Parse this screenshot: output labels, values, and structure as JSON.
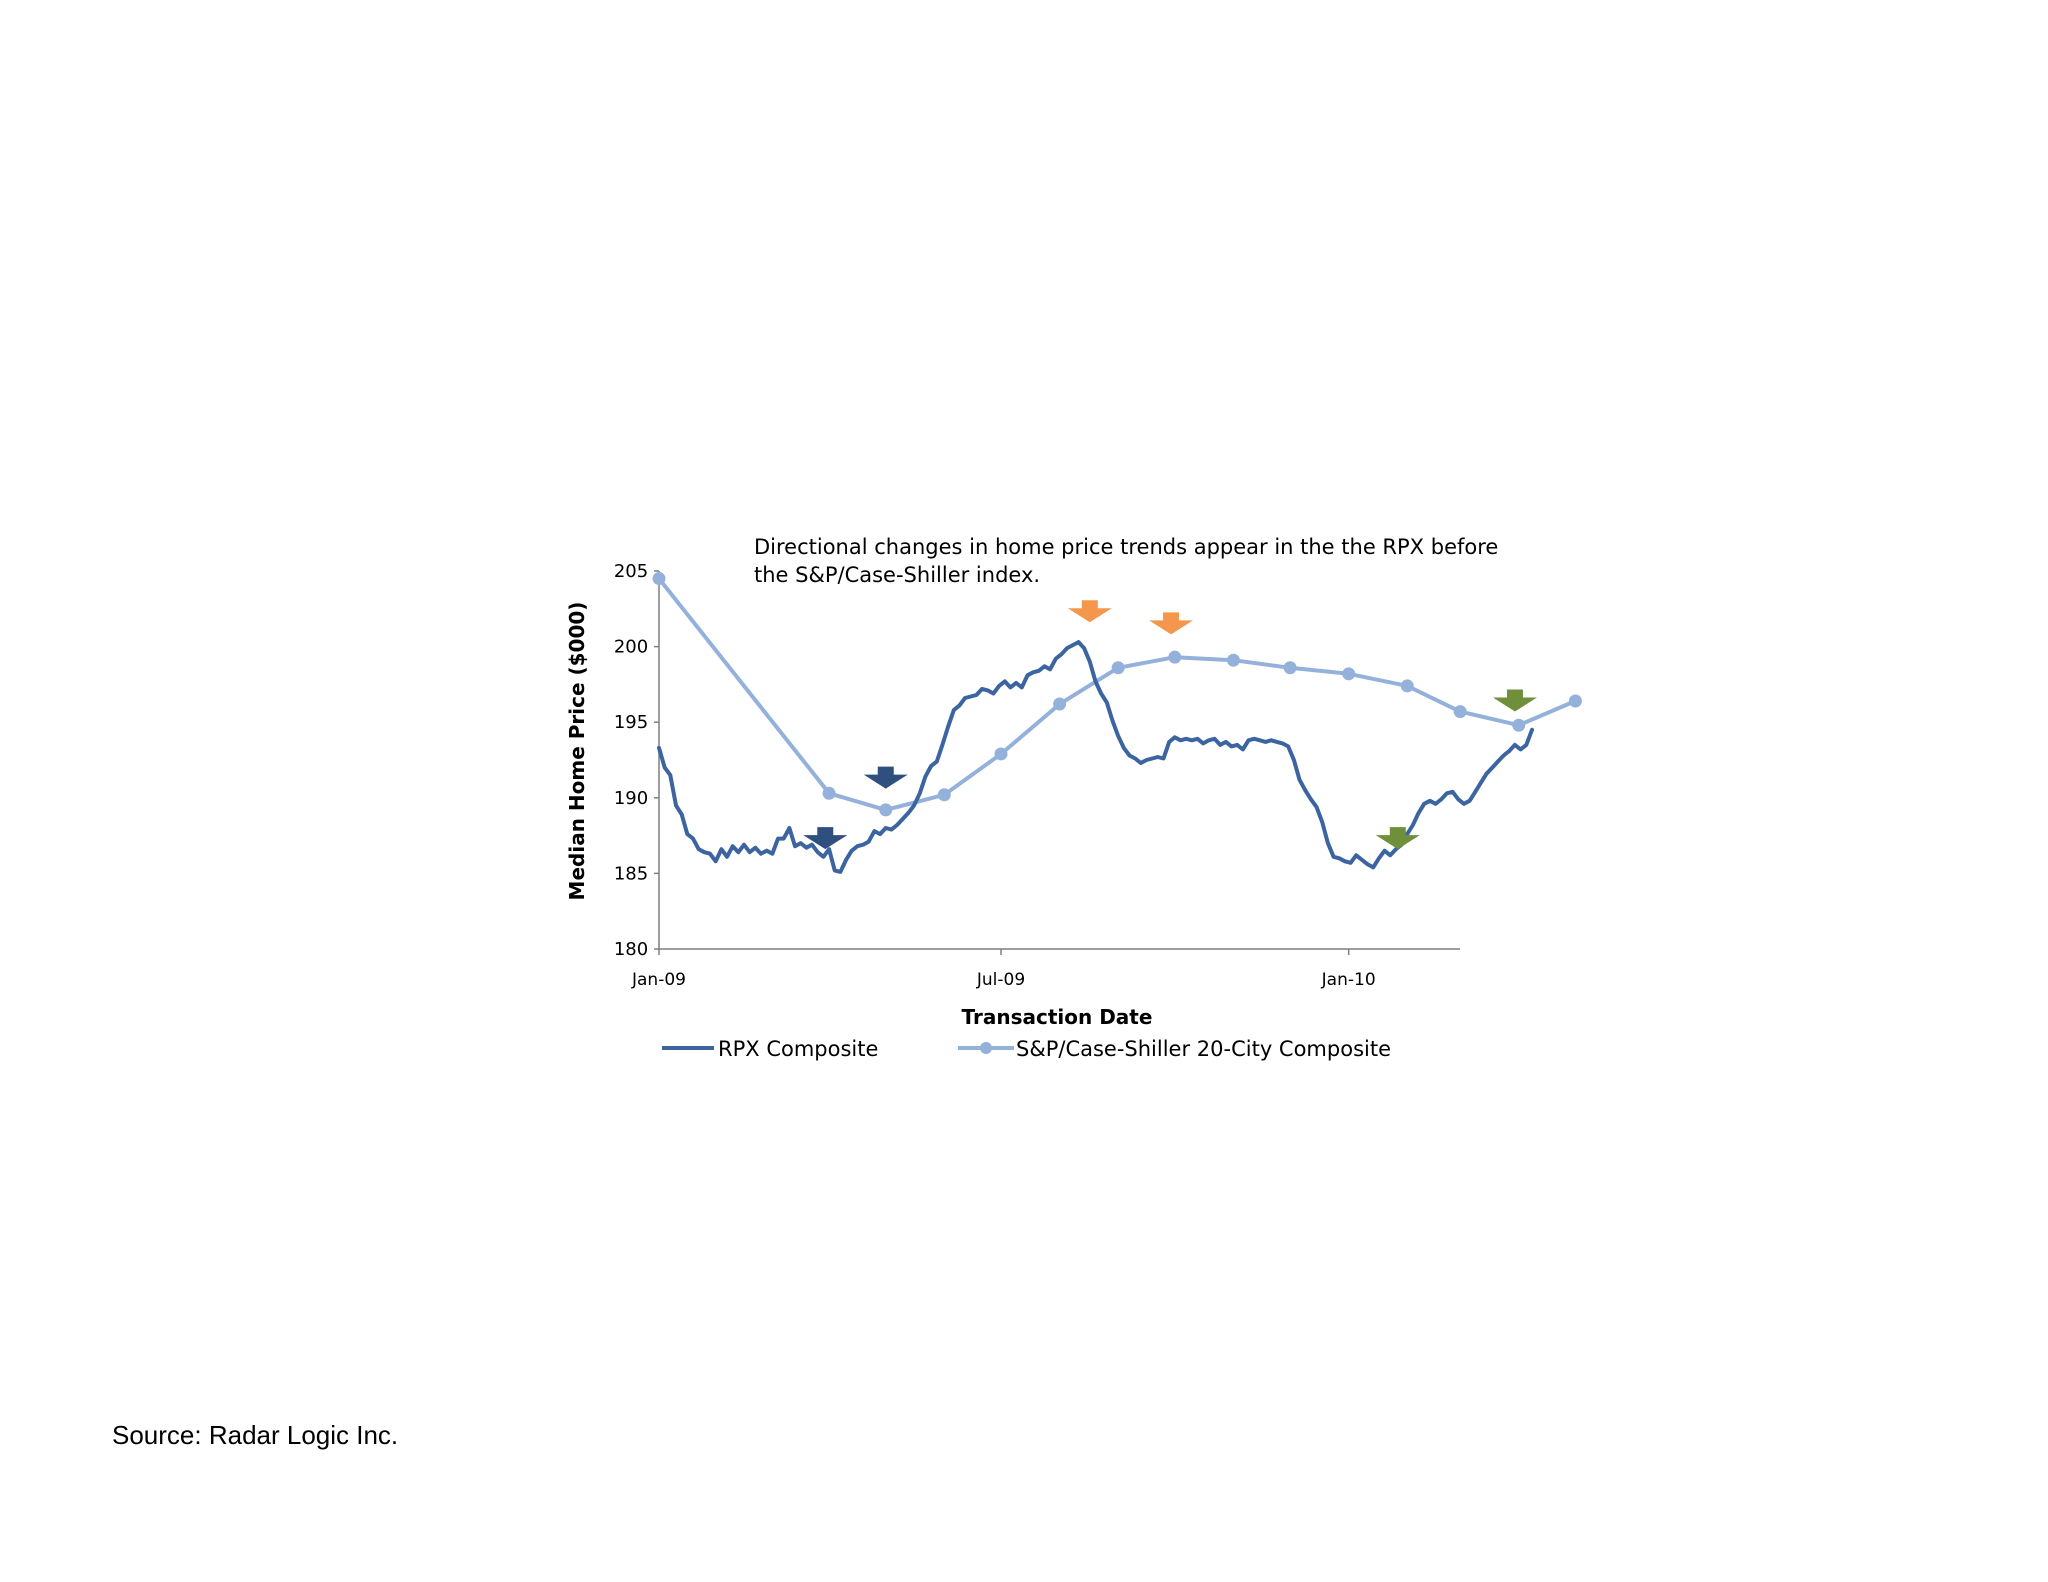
{
  "source": "Source: Radar Logic Inc.",
  "colors": {
    "rpx": "#3b64a0",
    "cs": "#94b1dc",
    "axis": "#7f7f7f",
    "dark_arrow": "#2f4f7f",
    "orange_arrow": "#f4974c",
    "green_arrow": "#6f8f3a"
  },
  "chart_data": {
    "type": "line",
    "title": "Directional changes in home price trends appear in the the RPX before the S&P/Case-Shiller index.",
    "title_lines": [
      "Directional changes in home price trends appear in the the RPX before",
      "the S&P/Case-Shiller index."
    ],
    "xlabel": "Transaction Date",
    "ylabel": "Median Home Price ($000)",
    "ylim": [
      180,
      205
    ],
    "yticks": [
      180,
      185,
      190,
      195,
      200,
      205
    ],
    "xlim": [
      "2009-01-01",
      "2010-05-20"
    ],
    "xticks": [
      {
        "date": "2009-01-01",
        "label": "Jan-09"
      },
      {
        "date": "2009-07-01",
        "label": "Jul-09"
      },
      {
        "date": "2010-01-01",
        "label": "Jan-10"
      }
    ],
    "grid": false,
    "legend": "bottom",
    "series": [
      {
        "name": "RPX Composite",
        "style": "line",
        "points": [
          [
            "2009-01-01",
            193.3
          ],
          [
            "2009-01-04",
            192.0
          ],
          [
            "2009-01-07",
            191.5
          ],
          [
            "2009-01-10",
            189.5
          ],
          [
            "2009-01-13",
            188.9
          ],
          [
            "2009-01-16",
            187.6
          ],
          [
            "2009-01-19",
            187.3
          ],
          [
            "2009-01-22",
            186.6
          ],
          [
            "2009-01-25",
            186.4
          ],
          [
            "2009-01-28",
            186.3
          ],
          [
            "2009-01-31",
            185.8
          ],
          [
            "2009-02-03",
            186.6
          ],
          [
            "2009-02-06",
            186.1
          ],
          [
            "2009-02-09",
            186.8
          ],
          [
            "2009-02-12",
            186.4
          ],
          [
            "2009-02-15",
            186.9
          ],
          [
            "2009-02-18",
            186.4
          ],
          [
            "2009-02-21",
            186.7
          ],
          [
            "2009-02-24",
            186.3
          ],
          [
            "2009-02-27",
            186.5
          ],
          [
            "2009-03-02",
            186.3
          ],
          [
            "2009-03-05",
            187.3
          ],
          [
            "2009-03-08",
            187.3
          ],
          [
            "2009-03-11",
            188.0
          ],
          [
            "2009-03-14",
            186.8
          ],
          [
            "2009-03-17",
            187.0
          ],
          [
            "2009-03-20",
            186.7
          ],
          [
            "2009-03-23",
            186.9
          ],
          [
            "2009-03-26",
            186.4
          ],
          [
            "2009-03-29",
            186.1
          ],
          [
            "2009-04-01",
            186.6
          ],
          [
            "2009-04-04",
            185.2
          ],
          [
            "2009-04-07",
            185.1
          ],
          [
            "2009-04-10",
            185.9
          ],
          [
            "2009-04-13",
            186.5
          ],
          [
            "2009-04-16",
            186.8
          ],
          [
            "2009-04-19",
            186.9
          ],
          [
            "2009-04-22",
            187.1
          ],
          [
            "2009-04-25",
            187.8
          ],
          [
            "2009-04-28",
            187.6
          ],
          [
            "2009-05-01",
            188.0
          ],
          [
            "2009-05-04",
            187.9
          ],
          [
            "2009-05-07",
            188.2
          ],
          [
            "2009-05-10",
            188.6
          ],
          [
            "2009-05-13",
            189.0
          ],
          [
            "2009-05-16",
            189.5
          ],
          [
            "2009-05-19",
            190.3
          ],
          [
            "2009-05-22",
            191.4
          ],
          [
            "2009-05-25",
            192.1
          ],
          [
            "2009-05-28",
            192.4
          ],
          [
            "2009-05-31",
            193.5
          ],
          [
            "2009-06-03",
            194.7
          ],
          [
            "2009-06-06",
            195.8
          ],
          [
            "2009-06-09",
            196.1
          ],
          [
            "2009-06-12",
            196.6
          ],
          [
            "2009-06-15",
            196.7
          ],
          [
            "2009-06-18",
            196.8
          ],
          [
            "2009-06-21",
            197.2
          ],
          [
            "2009-06-24",
            197.1
          ],
          [
            "2009-06-27",
            196.9
          ],
          [
            "2009-06-30",
            197.4
          ],
          [
            "2009-07-03",
            197.7
          ],
          [
            "2009-07-06",
            197.3
          ],
          [
            "2009-07-09",
            197.6
          ],
          [
            "2009-07-12",
            197.3
          ],
          [
            "2009-07-15",
            198.1
          ],
          [
            "2009-07-18",
            198.3
          ],
          [
            "2009-07-21",
            198.4
          ],
          [
            "2009-07-24",
            198.7
          ],
          [
            "2009-07-27",
            198.5
          ],
          [
            "2009-07-30",
            199.2
          ],
          [
            "2009-08-02",
            199.5
          ],
          [
            "2009-08-05",
            199.9
          ],
          [
            "2009-08-08",
            200.1
          ],
          [
            "2009-08-11",
            200.3
          ],
          [
            "2009-08-14",
            199.9
          ],
          [
            "2009-08-17",
            199.0
          ],
          [
            "2009-08-20",
            197.7
          ],
          [
            "2009-08-23",
            196.9
          ],
          [
            "2009-08-26",
            196.3
          ],
          [
            "2009-08-29",
            195.1
          ],
          [
            "2009-09-01",
            194.1
          ],
          [
            "2009-09-04",
            193.3
          ],
          [
            "2009-09-07",
            192.8
          ],
          [
            "2009-09-10",
            192.6
          ],
          [
            "2009-09-13",
            192.3
          ],
          [
            "2009-09-16",
            192.5
          ],
          [
            "2009-09-19",
            192.6
          ],
          [
            "2009-09-22",
            192.7
          ],
          [
            "2009-09-25",
            192.6
          ],
          [
            "2009-09-28",
            193.7
          ],
          [
            "2009-10-01",
            194.0
          ],
          [
            "2009-10-04",
            193.8
          ],
          [
            "2009-10-07",
            193.9
          ],
          [
            "2009-10-10",
            193.8
          ],
          [
            "2009-10-13",
            193.9
          ],
          [
            "2009-10-16",
            193.6
          ],
          [
            "2009-10-19",
            193.8
          ],
          [
            "2009-10-22",
            193.9
          ],
          [
            "2009-10-25",
            193.5
          ],
          [
            "2009-10-28",
            193.7
          ],
          [
            "2009-10-31",
            193.4
          ],
          [
            "2009-11-03",
            193.5
          ],
          [
            "2009-11-06",
            193.2
          ],
          [
            "2009-11-09",
            193.8
          ],
          [
            "2009-11-12",
            193.9
          ],
          [
            "2009-11-15",
            193.8
          ],
          [
            "2009-11-18",
            193.7
          ],
          [
            "2009-11-21",
            193.8
          ],
          [
            "2009-11-24",
            193.7
          ],
          [
            "2009-11-27",
            193.6
          ],
          [
            "2009-11-30",
            193.4
          ],
          [
            "2009-12-03",
            192.5
          ],
          [
            "2009-12-06",
            191.2
          ],
          [
            "2009-12-09",
            190.5
          ],
          [
            "2009-12-12",
            189.9
          ],
          [
            "2009-12-15",
            189.4
          ],
          [
            "2009-12-18",
            188.4
          ],
          [
            "2009-12-21",
            187.0
          ],
          [
            "2009-12-24",
            186.1
          ],
          [
            "2009-12-27",
            186.0
          ],
          [
            "2009-12-30",
            185.8
          ],
          [
            "2010-01-02",
            185.7
          ],
          [
            "2010-01-05",
            186.2
          ],
          [
            "2010-01-08",
            185.9
          ],
          [
            "2010-01-11",
            185.6
          ],
          [
            "2010-01-14",
            185.4
          ],
          [
            "2010-01-17",
            186.0
          ],
          [
            "2010-01-20",
            186.5
          ],
          [
            "2010-01-23",
            186.2
          ],
          [
            "2010-01-26",
            186.6
          ],
          [
            "2010-01-29",
            186.9
          ],
          [
            "2010-02-01",
            187.6
          ],
          [
            "2010-02-04",
            188.2
          ],
          [
            "2010-02-07",
            189.0
          ],
          [
            "2010-02-10",
            189.6
          ],
          [
            "2010-02-13",
            189.8
          ],
          [
            "2010-02-16",
            189.6
          ],
          [
            "2010-02-19",
            189.9
          ],
          [
            "2010-02-22",
            190.3
          ],
          [
            "2010-02-25",
            190.4
          ],
          [
            "2010-02-28",
            189.9
          ],
          [
            "2010-03-03",
            189.6
          ],
          [
            "2010-03-06",
            189.8
          ],
          [
            "2010-03-09",
            190.4
          ],
          [
            "2010-03-12",
            191.0
          ],
          [
            "2010-03-15",
            191.6
          ],
          [
            "2010-03-18",
            192.0
          ],
          [
            "2010-03-21",
            192.4
          ],
          [
            "2010-03-24",
            192.8
          ],
          [
            "2010-03-27",
            193.1
          ],
          [
            "2010-03-30",
            193.5
          ],
          [
            "2010-04-02",
            193.2
          ],
          [
            "2010-04-05",
            193.5
          ],
          [
            "2010-04-08",
            194.5
          ]
        ]
      },
      {
        "name": "S&P/Case-Shiller 20-City Composite",
        "style": "line-marker",
        "points": [
          [
            "2009-01-01",
            204.5
          ],
          [
            "2009-04-01",
            190.3
          ],
          [
            "2009-05-01",
            189.2
          ],
          [
            "2009-06-01",
            190.2
          ],
          [
            "2009-07-01",
            192.9
          ],
          [
            "2009-08-01",
            196.2
          ],
          [
            "2009-09-01",
            198.6
          ],
          [
            "2009-10-01",
            199.3
          ],
          [
            "2009-11-01",
            199.1
          ],
          [
            "2009-12-01",
            198.6
          ],
          [
            "2010-01-01",
            198.2
          ],
          [
            "2010-02-01",
            197.4
          ],
          [
            "2010-03-01",
            195.7
          ],
          [
            "2010-04-01",
            194.8
          ],
          [
            "2010-05-01",
            196.4
          ]
        ]
      }
    ],
    "annotations": [
      {
        "kind": "arrow-down",
        "color": "dark_arrow",
        "date": "2009-03-30",
        "value": 187.4
      },
      {
        "kind": "arrow-down",
        "color": "dark_arrow",
        "date": "2009-05-01",
        "value": 191.4
      },
      {
        "kind": "arrow-down",
        "color": "orange_arrow",
        "date": "2009-08-17",
        "value": 202.4
      },
      {
        "kind": "arrow-down",
        "color": "orange_arrow",
        "date": "2009-09-29",
        "value": 201.6
      },
      {
        "kind": "arrow-down",
        "color": "green_arrow",
        "date": "2010-01-27",
        "value": 187.4
      },
      {
        "kind": "arrow-down",
        "color": "green_arrow",
        "date": "2010-03-30",
        "value": 196.5
      }
    ]
  }
}
